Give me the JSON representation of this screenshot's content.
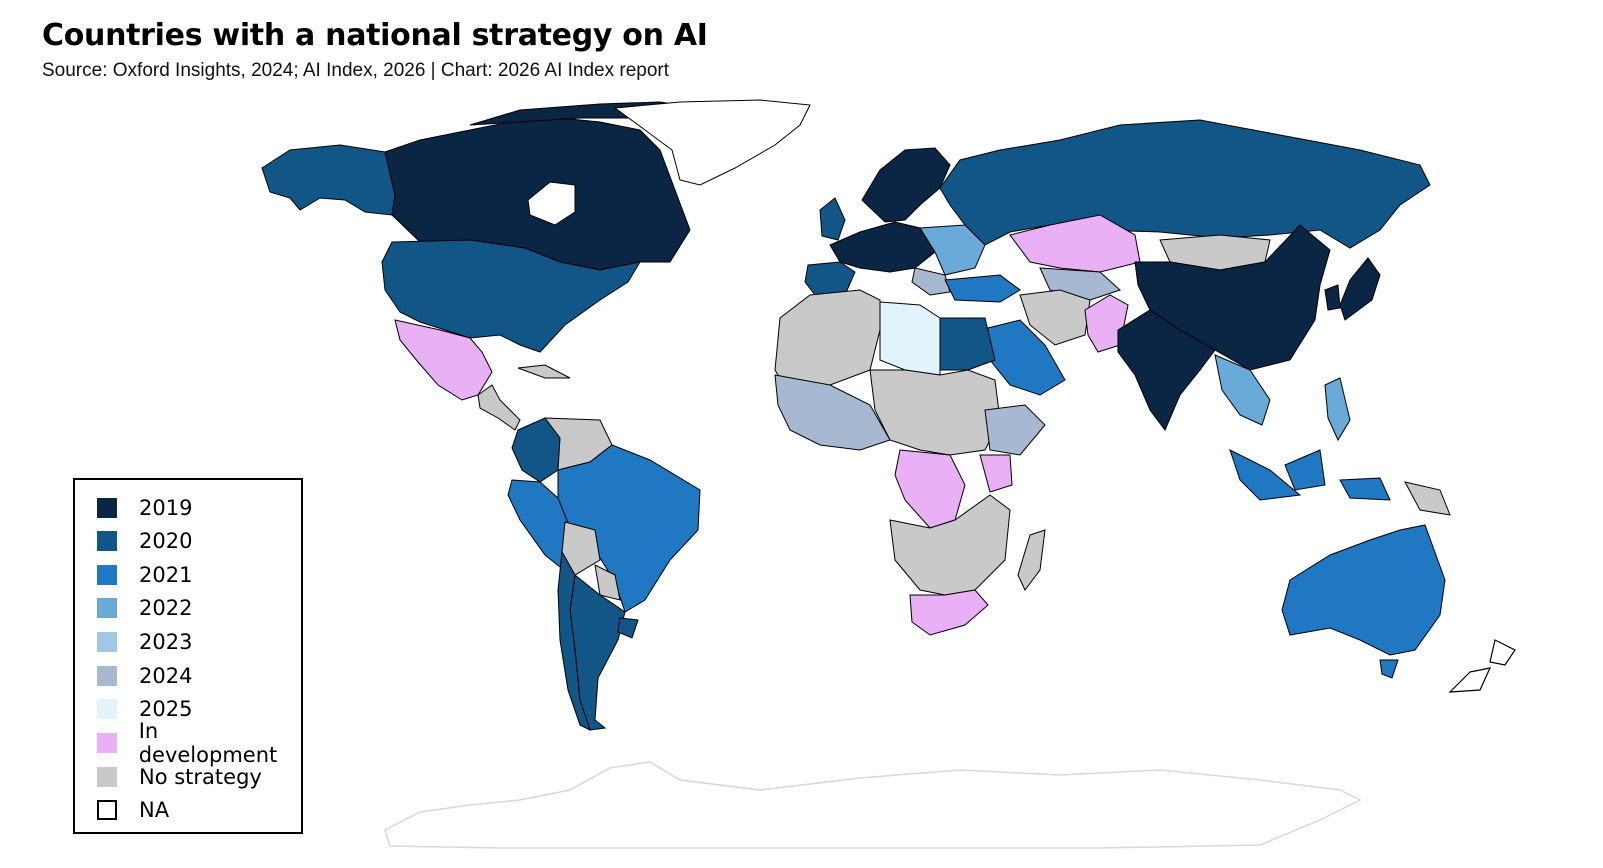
{
  "title": "Countries with a national strategy on AI",
  "subtitle": "Source: Oxford Insights, 2024; AI Index, 2026 | Chart: 2026 AI Index report",
  "colors": {
    "y2019": "#0b2545",
    "y2020": "#125688",
    "y2021": "#1f78c1",
    "y2022": "#6aaad8",
    "y2023": "#a3c8e6",
    "y2024": "#a7b9d1",
    "y2025": "#e2f4fb",
    "dev": "#e9b0f5",
    "none": "#c9c9c9",
    "na": "#ffffff"
  },
  "legend": [
    {
      "label": "2019",
      "category": "y2019"
    },
    {
      "label": "2020",
      "category": "y2020"
    },
    {
      "label": "2021",
      "category": "y2021"
    },
    {
      "label": "2022",
      "category": "y2022"
    },
    {
      "label": "2023",
      "category": "y2023"
    },
    {
      "label": "2024",
      "category": "y2024"
    },
    {
      "label": "2025",
      "category": "y2025"
    },
    {
      "label": "In development",
      "category": "dev"
    },
    {
      "label": "No strategy",
      "category": "none"
    },
    {
      "label": "NA",
      "category": "na"
    }
  ],
  "regions": [
    {
      "name": "Canada",
      "category": "y2019"
    },
    {
      "name": "United States",
      "category": "y2020"
    },
    {
      "name": "Alaska",
      "category": "y2020"
    },
    {
      "name": "Greenland",
      "category": "na"
    },
    {
      "name": "Mexico",
      "category": "dev"
    },
    {
      "name": "Colombia",
      "category": "y2020"
    },
    {
      "name": "Venezuela",
      "category": "none"
    },
    {
      "name": "Brazil",
      "category": "y2021"
    },
    {
      "name": "Peru",
      "category": "y2021"
    },
    {
      "name": "Bolivia",
      "category": "none"
    },
    {
      "name": "Argentina",
      "category": "y2020"
    },
    {
      "name": "Chile",
      "category": "y2020"
    },
    {
      "name": "Russia",
      "category": "y2020"
    },
    {
      "name": "Kazakhstan",
      "category": "dev"
    },
    {
      "name": "Mongolia",
      "category": "none"
    },
    {
      "name": "China",
      "category": "y2019"
    },
    {
      "name": "India",
      "category": "y2019"
    },
    {
      "name": "Pakistan",
      "category": "dev"
    },
    {
      "name": "Australia",
      "category": "y2021"
    },
    {
      "name": "Saudi Arabia",
      "category": "y2021"
    },
    {
      "name": "Egypt",
      "category": "y2020"
    },
    {
      "name": "Libya",
      "category": "y2025"
    },
    {
      "name": "DR Congo",
      "category": "dev"
    },
    {
      "name": "South Africa",
      "category": "dev"
    },
    {
      "name": "Ethiopia",
      "category": "y2024"
    },
    {
      "name": "Indonesia",
      "category": "y2021"
    }
  ]
}
